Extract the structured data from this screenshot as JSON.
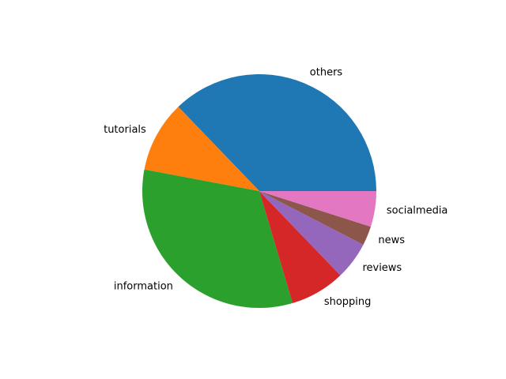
{
  "chart_data": {
    "type": "pie",
    "categories": [
      "others",
      "tutorials",
      "information",
      "shopping",
      "reviews",
      "news",
      "socialmedia"
    ],
    "values": [
      37.7,
      10.0,
      33.0,
      7.7,
      5.3,
      2.7,
      5.0
    ],
    "colors": [
      "#1f77b4",
      "#ff7f0e",
      "#2ca02c",
      "#d62728",
      "#9467bd",
      "#8c564b",
      "#e377c2"
    ],
    "title": "",
    "legend": "none",
    "start_angle_deg": 0,
    "direction": "counterclockwise"
  }
}
